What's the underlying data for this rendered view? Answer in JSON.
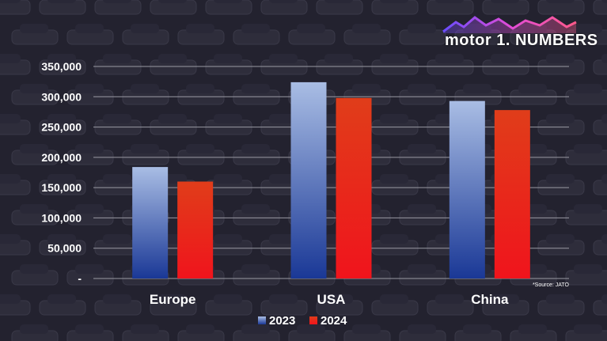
{
  "logo": {
    "text": "motor 1. NUMBERS"
  },
  "source": "*Source: JATO",
  "colors": {
    "background": "#23222f",
    "series_2023_top": "#a9bde4",
    "series_2023_bottom": "#1a3896",
    "series_2024_top": "#e03d1a",
    "series_2024_bottom": "#f0141c",
    "grid": "#9a9aa3"
  },
  "chart_data": {
    "type": "bar",
    "categories": [
      "Europe",
      "USA",
      "China"
    ],
    "series": [
      {
        "name": "2023",
        "values": [
          184000,
          324000,
          293000
        ]
      },
      {
        "name": "2024",
        "values": [
          160000,
          298000,
          278000
        ]
      }
    ],
    "y_ticks": [
      "-",
      "50,000",
      "100,000",
      "150,000",
      "200,000",
      "250,000",
      "300,000",
      "350,000"
    ],
    "ylim": [
      0,
      350000
    ],
    "grid": true,
    "legend_position": "bottom-center"
  }
}
